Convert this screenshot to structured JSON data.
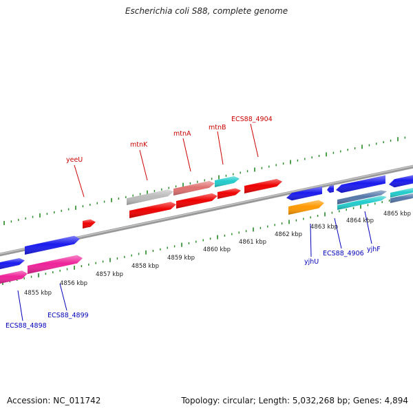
{
  "header": {
    "title": "Escherichia coli S88, complete genome"
  },
  "footer": {
    "accession": "Accession: NC_011742",
    "summary": "Topology: circular; Length: 5,032,268 bp; Genes: 4,894"
  },
  "axis": {
    "kbp_labels": [
      "4855 kbp",
      "4856 kbp",
      "4857 kbp",
      "4858 kbp",
      "4859 kbp",
      "4860 kbp",
      "4861 kbp",
      "4862 kbp",
      "4863 kbp",
      "4864 kbp",
      "4865 kbp"
    ]
  },
  "gene_labels": {
    "top": [
      "yeeU",
      "mtnK",
      "mtnA",
      "mtnB",
      "ECS88_4904"
    ],
    "bottom": [
      "ECS88_4898",
      "ECS88_4899",
      "yjhU",
      "ECS88_4906",
      "yjhF"
    ]
  },
  "colors": {
    "red": "#ee0000",
    "blue": "#1a1aee",
    "magenta": "#ee2299",
    "grey": "#bbbbbb",
    "salmon": "#e07070",
    "cyan": "#22cccc",
    "orange": "#ff9900",
    "steel": "#5577aa",
    "tick": "#228822",
    "genome_line": "#888888",
    "label_top": "#cc0000",
    "label_bottom": "#0000bb"
  }
}
